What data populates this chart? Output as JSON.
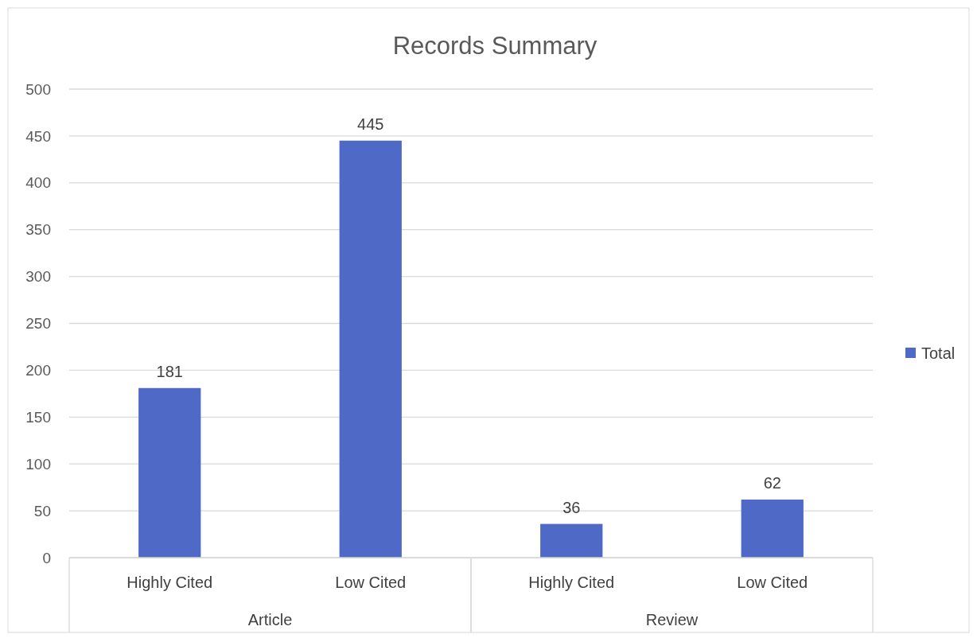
{
  "chart_data": {
    "type": "bar",
    "title": "Records Summary",
    "categories": [
      "Highly Cited",
      "Low Cited",
      "Highly Cited",
      "Low Cited"
    ],
    "series": [
      {
        "name": "Total",
        "color": "#4f69c6",
        "values": [
          181,
          445,
          36,
          62
        ]
      }
    ],
    "annotations": [
      "Article",
      "Review"
    ],
    "ylim": [
      0,
      500
    ],
    "yticks": [
      0,
      50,
      100,
      150,
      200,
      250,
      300,
      350,
      400,
      450,
      500
    ],
    "grid": "y",
    "legend": "right",
    "data_labels": true
  }
}
